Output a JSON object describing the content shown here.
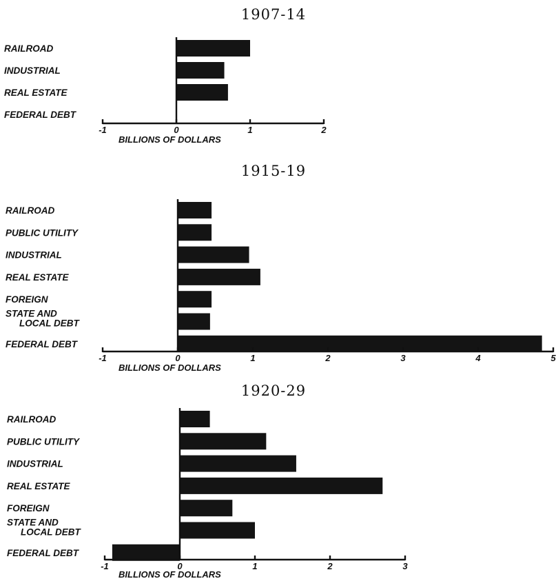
{
  "chart_data": [
    {
      "type": "bar",
      "orientation": "horizontal",
      "title": "1907-14",
      "xlabel": "BILLIONS OF DOLLARS",
      "xlim": [
        -1,
        2
      ],
      "xticks": [
        "-1",
        "0",
        "1",
        "2"
      ],
      "categories": [
        "RAILROAD",
        "INDUSTRIAL",
        "REAL ESTATE",
        "FEDERAL DEBT"
      ],
      "values": [
        1.0,
        0.65,
        0.7,
        0.0
      ]
    },
    {
      "type": "bar",
      "orientation": "horizontal",
      "title": "1915-19",
      "xlabel": "BILLIONS OF DOLLARS",
      "xlim": [
        -1,
        5
      ],
      "xticks": [
        "-1",
        "0",
        "1",
        "2",
        "3",
        "4",
        "5"
      ],
      "categories": [
        "RAILROAD",
        "PUBLIC UTILITY",
        "INDUSTRIAL",
        "REAL ESTATE",
        "FOREIGN",
        [
          "STATE AND",
          "LOCAL DEBT"
        ],
        "FEDERAL DEBT"
      ],
      "values": [
        0.45,
        0.45,
        0.95,
        1.1,
        0.45,
        0.43,
        4.85
      ]
    },
    {
      "type": "bar",
      "orientation": "horizontal",
      "title": "1920-29",
      "xlabel": "BILLIONS OF DOLLARS",
      "xlim": [
        -1,
        3
      ],
      "xticks": [
        "-1",
        "0",
        "1",
        "2",
        "3"
      ],
      "categories": [
        "RAILROAD",
        "PUBLIC UTILITY",
        "INDUSTRIAL",
        "REAL ESTATE",
        "FOREIGN",
        [
          "STATE AND",
          "LOCAL DEBT"
        ],
        "FEDERAL DEBT"
      ],
      "values": [
        0.4,
        1.15,
        1.55,
        2.7,
        0.7,
        1.0,
        -0.9
      ]
    }
  ]
}
